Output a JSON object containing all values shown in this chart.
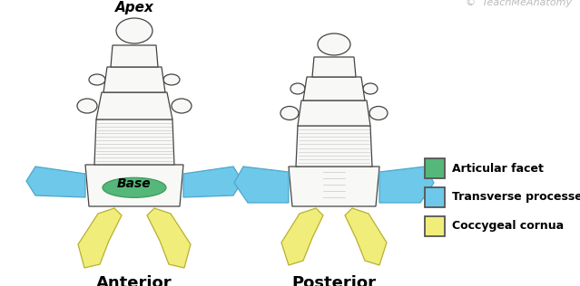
{
  "background_color": "#ffffff",
  "label_anterior": "Anterior",
  "label_posterior": "Posterior",
  "label_base": "Base",
  "label_apex": "Apex",
  "label_copyright": "©  TeachMeAnatomy",
  "color_yellow": "#f0ed7a",
  "color_blue": "#6ec8ea",
  "color_green": "#55b87a",
  "color_outline": "#444444",
  "color_bone_white": "#f8f8f6",
  "color_hatch": "#999999",
  "legend_items": [
    {
      "label": "Coccygeal cornua",
      "color": "#f0ed7a"
    },
    {
      "label": "Transverse processes",
      "color": "#6ec8ea"
    },
    {
      "label": "Articular facet",
      "color": "#55b87a"
    }
  ]
}
